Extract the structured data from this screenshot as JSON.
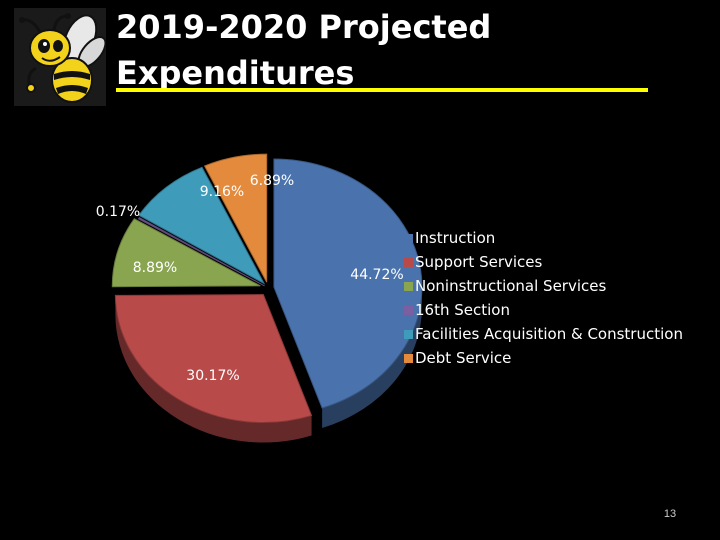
{
  "slide": {
    "title_line1": "2019-2020 Projected",
    "title_line2": "Expenditures",
    "page_number": "13"
  },
  "logo": {
    "icon": "bee-mascot-icon"
  },
  "chart_data": {
    "type": "pie",
    "style": "3d-exploded",
    "title": "",
    "categories": [
      "Instruction",
      "Support Services",
      "Noninstructional Services",
      "16th Section",
      "Facilities Acquisition & Construction",
      "Debt Service"
    ],
    "values": [
      44.72,
      30.17,
      8.89,
      0.17,
      9.16,
      6.89
    ],
    "labels": [
      "44.72%",
      "30.17%",
      "8.89%",
      "0.17%",
      "9.16%",
      "6.89%"
    ],
    "colors": [
      "#4a73ad",
      "#b84a4a",
      "#89a550",
      "#7c5fa0",
      "#3f9bba",
      "#e38a3c"
    ],
    "legend_position": "right"
  }
}
